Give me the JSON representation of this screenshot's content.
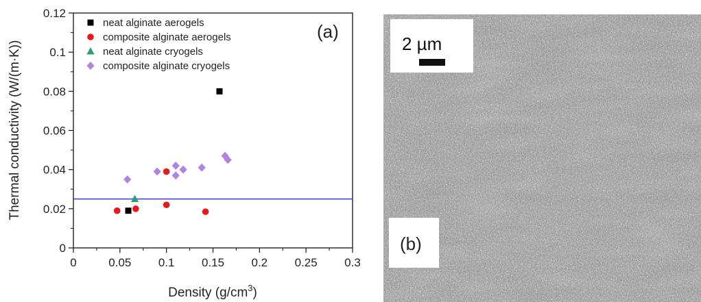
{
  "chart_data": {
    "type": "scatter",
    "panel_label": "(a)",
    "xlabel": "Density (g/cm",
    "xlabel_superscript": "3",
    "xlabel_close": ")",
    "ylabel": "Thermal conductivity (W/(m·K))",
    "xlim": [
      0,
      0.3
    ],
    "ylim": [
      0,
      0.12
    ],
    "x_ticks": [
      "0",
      "0.05",
      "0.1",
      "0.15",
      "0.2",
      "0.25",
      "0.3"
    ],
    "y_ticks": [
      "0",
      "0.02",
      "0.04",
      "0.06",
      "0.08",
      "0.1",
      "0.12"
    ],
    "grid": false,
    "legend_position": "top-left",
    "reference_line": {
      "y": 0.025,
      "color": "#2b2bdd"
    },
    "series": [
      {
        "name": "neat alginate aerogels",
        "marker": "square",
        "color": "#000000",
        "points": [
          [
            0.059,
            0.019
          ],
          [
            0.157,
            0.08
          ]
        ]
      },
      {
        "name": "composite alginate aerogels",
        "marker": "circle",
        "color": "#e8191c",
        "points": [
          [
            0.047,
            0.019
          ],
          [
            0.067,
            0.02
          ],
          [
            0.1,
            0.039
          ],
          [
            0.1,
            0.022
          ],
          [
            0.142,
            0.0185
          ]
        ]
      },
      {
        "name": "neat alginate cryogels",
        "marker": "triangle",
        "color": "#27a07a",
        "points": [
          [
            0.066,
            0.025
          ]
        ]
      },
      {
        "name": "composite alginate cryogels",
        "marker": "diamond",
        "color": "#b085e0",
        "points": [
          [
            0.058,
            0.035
          ],
          [
            0.09,
            0.039
          ],
          [
            0.11,
            0.042
          ],
          [
            0.11,
            0.037
          ],
          [
            0.118,
            0.04
          ],
          [
            0.138,
            0.041
          ],
          [
            0.163,
            0.047
          ],
          [
            0.166,
            0.045
          ]
        ]
      }
    ]
  },
  "micrograph": {
    "panel_label": "(b)",
    "scale_bar_label": "2 µm"
  }
}
